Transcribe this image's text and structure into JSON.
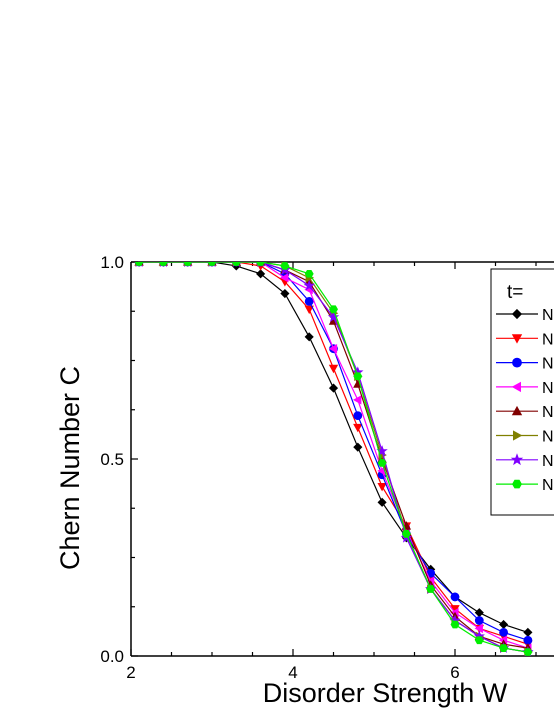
{
  "chart_data": {
    "type": "line",
    "xlabel": "Disorder Strength W",
    "ylabel": "Chern Number C",
    "xlim": [
      2,
      8
    ],
    "ylim": [
      0,
      1
    ],
    "x_ticks": [
      "2",
      "4",
      "6"
    ],
    "y_ticks": [
      "0.0",
      "0.5",
      "1.0"
    ],
    "legend_title": "t=",
    "legend_placement": "top-right",
    "grid": false,
    "series": [
      {
        "name": "N",
        "color": "#000000",
        "marker": "diamond",
        "x": [
          2.1,
          2.4,
          2.7,
          3.0,
          3.3,
          3.6,
          3.9,
          4.2,
          4.5,
          4.8,
          5.1,
          5.4,
          5.7,
          6.0,
          6.3,
          6.6,
          6.9
        ],
        "y": [
          1.0,
          1.0,
          1.0,
          1.0,
          0.99,
          0.97,
          0.92,
          0.81,
          0.68,
          0.53,
          0.39,
          0.3,
          0.22,
          0.15,
          0.11,
          0.08,
          0.06
        ]
      },
      {
        "name": "N",
        "color": "#ff0000",
        "marker": "triangle-down",
        "x": [
          2.1,
          2.4,
          2.7,
          3.0,
          3.3,
          3.6,
          3.9,
          4.2,
          4.5,
          4.8,
          5.1,
          5.4,
          5.7,
          6.0,
          6.3,
          6.6,
          6.9
        ],
        "y": [
          1.0,
          1.0,
          1.0,
          1.0,
          1.0,
          0.99,
          0.95,
          0.88,
          0.73,
          0.58,
          0.43,
          0.33,
          0.2,
          0.12,
          0.07,
          0.05,
          0.03
        ]
      },
      {
        "name": "N",
        "color": "#0000ff",
        "marker": "circle",
        "x": [
          2.1,
          2.4,
          2.7,
          3.0,
          3.3,
          3.6,
          3.9,
          4.2,
          4.5,
          4.8,
          5.1,
          5.4,
          5.7,
          6.0,
          6.3,
          6.6,
          6.9
        ],
        "y": [
          1.0,
          1.0,
          1.0,
          1.0,
          1.0,
          1.0,
          0.97,
          0.9,
          0.78,
          0.61,
          0.46,
          0.31,
          0.21,
          0.15,
          0.09,
          0.06,
          0.04
        ]
      },
      {
        "name": "N",
        "color": "#ff00ff",
        "marker": "triangle-left",
        "x": [
          2.1,
          2.4,
          2.7,
          3.0,
          3.3,
          3.6,
          3.9,
          4.2,
          4.5,
          4.8,
          5.1,
          5.4,
          5.7,
          6.0,
          6.3,
          6.6,
          6.9
        ],
        "y": [
          1.0,
          1.0,
          1.0,
          1.0,
          1.0,
          1.0,
          0.96,
          0.93,
          0.78,
          0.65,
          0.47,
          0.32,
          0.19,
          0.11,
          0.07,
          0.04,
          0.02
        ]
      },
      {
        "name": "N",
        "color": "#800000",
        "marker": "triangle-up",
        "x": [
          2.1,
          2.4,
          2.7,
          3.0,
          3.3,
          3.6,
          3.9,
          4.2,
          4.5,
          4.8,
          5.1,
          5.4,
          5.7,
          6.0,
          6.3,
          6.6,
          6.9
        ],
        "y": [
          1.0,
          1.0,
          1.0,
          1.0,
          1.0,
          1.0,
          0.98,
          0.95,
          0.85,
          0.69,
          0.5,
          0.33,
          0.18,
          0.1,
          0.05,
          0.03,
          0.02
        ]
      },
      {
        "name": "N",
        "color": "#808000",
        "marker": "triangle-right",
        "x": [
          2.1,
          2.4,
          2.7,
          3.0,
          3.3,
          3.6,
          3.9,
          4.2,
          4.5,
          4.8,
          5.1,
          5.4,
          5.7,
          6.0,
          6.3,
          6.6,
          6.9
        ],
        "y": [
          1.0,
          1.0,
          1.0,
          1.0,
          1.0,
          1.0,
          0.99,
          0.96,
          0.87,
          0.71,
          0.51,
          0.31,
          0.17,
          0.09,
          0.05,
          0.02,
          0.01
        ]
      },
      {
        "name": "N",
        "color": "#8000ff",
        "marker": "star",
        "x": [
          2.1,
          2.4,
          2.7,
          3.0,
          3.3,
          3.6,
          3.9,
          4.2,
          4.5,
          4.8,
          5.1,
          5.4,
          5.7,
          6.0,
          6.3,
          6.6,
          6.9
        ],
        "y": [
          1.0,
          1.0,
          1.0,
          1.0,
          1.0,
          1.0,
          0.98,
          0.94,
          0.86,
          0.72,
          0.52,
          0.3,
          0.17,
          0.09,
          0.05,
          0.02,
          0.01
        ]
      },
      {
        "name": "N",
        "color": "#00ee00",
        "marker": "hexagon",
        "x": [
          2.1,
          2.4,
          2.7,
          3.0,
          3.3,
          3.6,
          3.9,
          4.2,
          4.5,
          4.8,
          5.1,
          5.4,
          5.7,
          6.0,
          6.3,
          6.6,
          6.9
        ],
        "y": [
          1.0,
          1.0,
          1.0,
          1.0,
          1.0,
          1.0,
          0.99,
          0.97,
          0.88,
          0.71,
          0.49,
          0.31,
          0.17,
          0.08,
          0.04,
          0.02,
          0.01
        ]
      }
    ]
  }
}
